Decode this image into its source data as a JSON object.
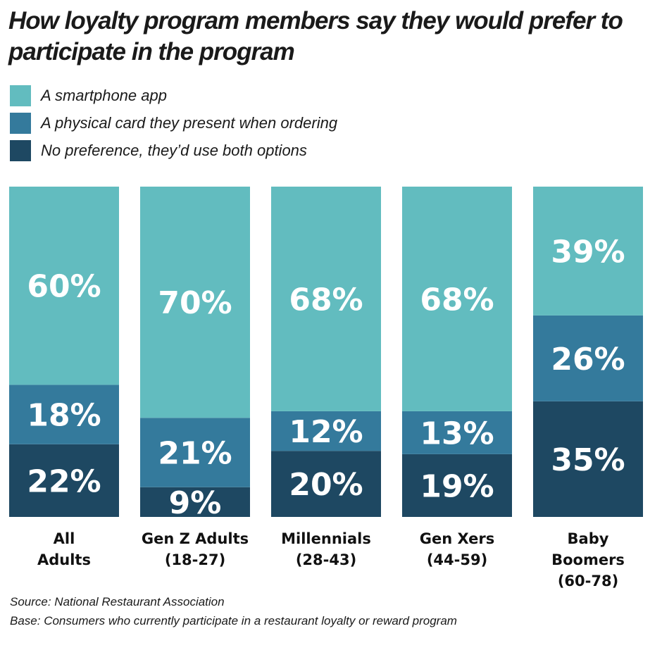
{
  "chart_data": {
    "type": "bar",
    "stacked": true,
    "title": "How loyalty program members say they would prefer to participate in the program",
    "categories": [
      [
        "All",
        "Adults"
      ],
      [
        "Gen Z Adults",
        "(18-27)"
      ],
      [
        "Millennials",
        "(28-43)"
      ],
      [
        "Gen Xers",
        "(44-59)"
      ],
      [
        "Baby",
        "Boomers",
        "(60-78)"
      ]
    ],
    "series": [
      {
        "name": "No preference, they’d use both options",
        "color": "#1e4862",
        "values": [
          22,
          9,
          20,
          19,
          35
        ],
        "labels": [
          "22%",
          "9%",
          "20%",
          "19%",
          "35%"
        ]
      },
      {
        "name": "A physical card they present when ordering",
        "color": "#347a9c",
        "values": [
          18,
          21,
          12,
          13,
          26
        ],
        "labels": [
          "18%",
          "21%",
          "12%",
          "13%",
          "26%"
        ]
      },
      {
        "name": "A smartphone app",
        "color": "#62bcbf",
        "values": [
          60,
          70,
          68,
          68,
          39
        ],
        "labels": [
          "60%",
          "70%",
          "68%",
          "68%",
          "39%"
        ]
      }
    ],
    "legend_order": [
      2,
      1,
      0
    ],
    "ylim": [
      0,
      100
    ],
    "grid": false,
    "legend_position": "top-left"
  },
  "notes": {
    "source": "Source: National Restaurant Association",
    "base": "Base: Consumers who currently participate in a restaurant loyalty or reward program"
  }
}
